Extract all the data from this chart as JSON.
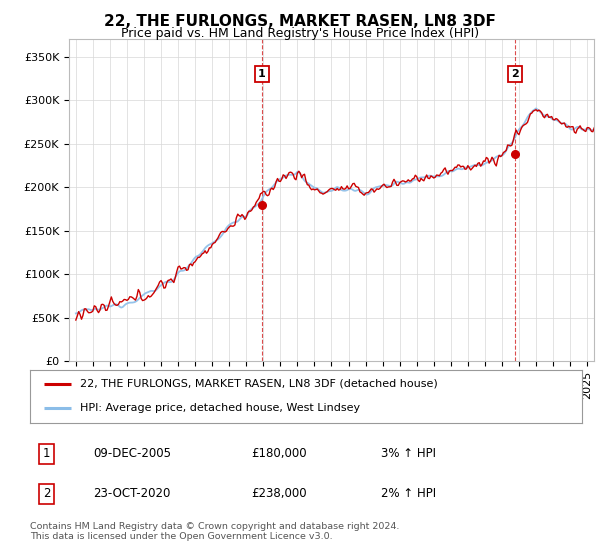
{
  "title": "22, THE FURLONGS, MARKET RASEN, LN8 3DF",
  "subtitle": "Price paid vs. HM Land Registry's House Price Index (HPI)",
  "ylabel_ticks": [
    "£0",
    "£50K",
    "£100K",
    "£150K",
    "£200K",
    "£250K",
    "£300K",
    "£350K"
  ],
  "ytick_values": [
    0,
    50000,
    100000,
    150000,
    200000,
    250000,
    300000,
    350000
  ],
  "ylim": [
    0,
    370000
  ],
  "xlim_start": 1994.6,
  "xlim_end": 2025.4,
  "hpi_color": "#8bbde8",
  "price_color": "#cc0000",
  "sale1_x": 2005.92,
  "sale1_y": 180000,
  "sale2_x": 2020.79,
  "sale2_y": 238000,
  "legend_line1": "22, THE FURLONGS, MARKET RASEN, LN8 3DF (detached house)",
  "legend_line2": "HPI: Average price, detached house, West Lindsey",
  "table_row1": [
    "1",
    "09-DEC-2005",
    "£180,000",
    "3% ↑ HPI"
  ],
  "table_row2": [
    "2",
    "23-OCT-2020",
    "£238,000",
    "2% ↑ HPI"
  ],
  "footnote": "Contains HM Land Registry data © Crown copyright and database right 2024.\nThis data is licensed under the Open Government Licence v3.0.",
  "background_color": "#ffffff",
  "grid_color": "#d8d8d8",
  "title_fontsize": 11,
  "subtitle_fontsize": 9,
  "tick_fontsize": 8
}
